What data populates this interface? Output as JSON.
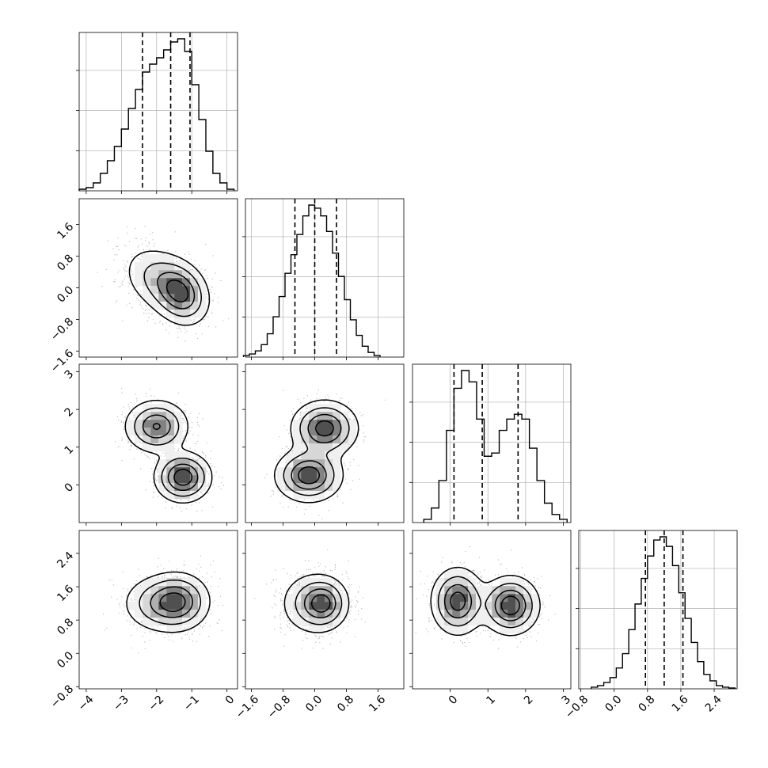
{
  "chart_data": {
    "type": "corner",
    "title": "",
    "parameters": [
      {
        "index": 0,
        "label": "",
        "range": [
          -4.2,
          0.3
        ],
        "ticks": [
          -4,
          -3,
          -2,
          -1,
          0
        ]
      },
      {
        "index": 1,
        "label": "",
        "range": [
          -1.75,
          2.25
        ],
        "ticks": [
          -1.6,
          -0.8,
          0.0,
          0.8,
          1.6
        ]
      },
      {
        "index": 2,
        "label": "",
        "range": [
          -1.0,
          3.2
        ],
        "ticks": [
          0,
          1,
          2,
          3
        ]
      },
      {
        "index": 3,
        "label": "",
        "range": [
          -0.85,
          2.95
        ],
        "ticks": [
          -0.8,
          0.0,
          0.8,
          1.6,
          2.4
        ]
      }
    ],
    "tick_label_text": {
      "p0": [
        "−4",
        "−3",
        "−2",
        "−1",
        "0"
      ],
      "p1": [
        "−1.6",
        "−0.8",
        "0.0",
        "0.8",
        "1.6"
      ],
      "p2": [
        "0",
        "1",
        "2",
        "3"
      ],
      "p3": [
        "−0.8",
        "0.0",
        "0.8",
        "1.6",
        "2.4"
      ]
    },
    "grid": true,
    "quantiles": [
      0.16,
      0.5,
      0.84
    ],
    "diagonal_histograms": [
      {
        "param": 0,
        "quantiles": [
          -2.4,
          -1.6,
          -1.05
        ],
        "edges": [
          -4.2,
          -4.0,
          -3.8,
          -3.6,
          -3.4,
          -3.2,
          -3.0,
          -2.8,
          -2.6,
          -2.4,
          -2.2,
          -2.0,
          -1.8,
          -1.6,
          -1.4,
          -1.2,
          -1.0,
          -0.8,
          -0.6,
          -0.4,
          -0.2,
          0.0,
          0.2
        ],
        "counts": [
          0.01,
          0.02,
          0.05,
          0.11,
          0.19,
          0.28,
          0.39,
          0.52,
          0.64,
          0.75,
          0.8,
          0.84,
          0.89,
          0.94,
          0.96,
          0.88,
          0.67,
          0.45,
          0.25,
          0.11,
          0.05,
          0.01
        ]
      },
      {
        "param": 1,
        "quantiles": [
          -0.5,
          0.0,
          0.55
        ],
        "edges": [
          -1.8,
          -1.65,
          -1.5,
          -1.35,
          -1.2,
          -1.05,
          -0.9,
          -0.75,
          -0.6,
          -0.45,
          -0.3,
          -0.15,
          0.0,
          0.15,
          0.3,
          0.45,
          0.6,
          0.75,
          0.9,
          1.05,
          1.2,
          1.35,
          1.5,
          1.65
        ],
        "counts": [
          0.01,
          0.02,
          0.04,
          0.08,
          0.15,
          0.26,
          0.39,
          0.54,
          0.66,
          0.79,
          0.91,
          0.98,
          0.96,
          0.91,
          0.81,
          0.67,
          0.52,
          0.37,
          0.24,
          0.14,
          0.07,
          0.03,
          0.01
        ]
      },
      {
        "param": 2,
        "quantiles": [
          0.1,
          0.85,
          1.8
        ],
        "edges": [
          -0.7,
          -0.5,
          -0.3,
          -0.1,
          0.1,
          0.3,
          0.5,
          0.7,
          0.9,
          1.1,
          1.3,
          1.5,
          1.7,
          1.9,
          2.1,
          2.3,
          2.5,
          2.7,
          2.9,
          3.1
        ],
        "counts": [
          0.02,
          0.09,
          0.26,
          0.57,
          0.83,
          0.94,
          0.87,
          0.64,
          0.41,
          0.43,
          0.57,
          0.64,
          0.67,
          0.64,
          0.46,
          0.26,
          0.12,
          0.05,
          0.02
        ]
      },
      {
        "param": 3,
        "quantiles": [
          0.75,
          1.2,
          1.65
        ],
        "edges": [
          -0.55,
          -0.4,
          -0.25,
          -0.1,
          0.05,
          0.2,
          0.35,
          0.5,
          0.65,
          0.8,
          0.95,
          1.1,
          1.25,
          1.4,
          1.55,
          1.7,
          1.85,
          2.0,
          2.15,
          2.3,
          2.45,
          2.6,
          2.75,
          2.9
        ],
        "counts": [
          0.01,
          0.02,
          0.04,
          0.07,
          0.13,
          0.22,
          0.37,
          0.53,
          0.69,
          0.83,
          0.93,
          0.95,
          0.89,
          0.77,
          0.6,
          0.44,
          0.29,
          0.17,
          0.09,
          0.05,
          0.02,
          0.01,
          0.005
        ]
      }
    ],
    "joint_distributions": [
      {
        "x_param": 0,
        "y_param": 1,
        "components": [
          {
            "w": 0.45,
            "mx": -1.9,
            "my": 0.2,
            "sx": 0.55,
            "sy": 0.45,
            "r": -0.3
          },
          {
            "w": 0.55,
            "mx": -1.3,
            "my": -0.15,
            "sx": 0.4,
            "sy": 0.4,
            "r": -0.2
          }
        ]
      },
      {
        "x_param": 0,
        "y_param": 2,
        "components": [
          {
            "w": 0.5,
            "mx": -2.0,
            "my": 1.55,
            "sx": 0.45,
            "sy": 0.35,
            "r": 0.0
          },
          {
            "w": 0.5,
            "mx": -1.25,
            "my": 0.2,
            "sx": 0.4,
            "sy": 0.33,
            "r": 0.0
          }
        ]
      },
      {
        "x_param": 1,
        "y_param": 2,
        "components": [
          {
            "w": 0.5,
            "mx": 0.25,
            "my": 1.5,
            "sx": 0.42,
            "sy": 0.37,
            "r": 0.0
          },
          {
            "w": 0.5,
            "mx": -0.15,
            "my": 0.25,
            "sx": 0.42,
            "sy": 0.35,
            "r": 0.0
          }
        ]
      },
      {
        "x_param": 0,
        "y_param": 3,
        "components": [
          {
            "w": 0.5,
            "mx": -1.9,
            "my": 1.2,
            "sx": 0.55,
            "sy": 0.35,
            "r": 0.0
          },
          {
            "w": 0.5,
            "mx": -1.35,
            "my": 1.25,
            "sx": 0.45,
            "sy": 0.35,
            "r": 0.0
          }
        ]
      },
      {
        "x_param": 1,
        "y_param": 3,
        "components": [
          {
            "w": 0.6,
            "mx": -0.05,
            "my": 1.2,
            "sx": 0.42,
            "sy": 0.38,
            "r": 0.0
          },
          {
            "w": 0.4,
            "mx": 0.25,
            "my": 1.2,
            "sx": 0.3,
            "sy": 0.3,
            "r": 0.0
          }
        ]
      },
      {
        "x_param": 2,
        "y_param": 3,
        "components": [
          {
            "w": 0.5,
            "mx": 0.2,
            "my": 1.25,
            "sx": 0.35,
            "sy": 0.4,
            "r": 0.0
          },
          {
            "w": 0.5,
            "mx": 1.6,
            "my": 1.15,
            "sx": 0.38,
            "sy": 0.35,
            "r": 0.0
          }
        ]
      }
    ]
  }
}
